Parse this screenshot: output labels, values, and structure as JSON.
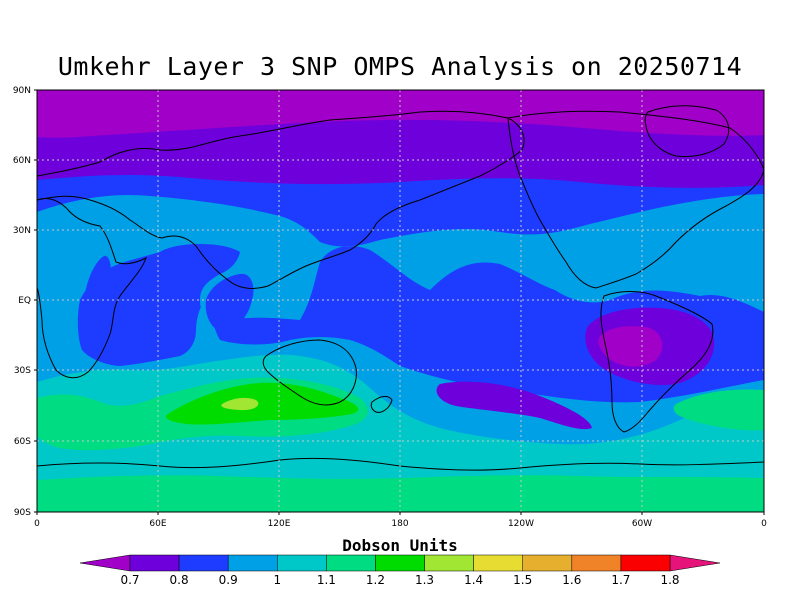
{
  "title": "Umkehr Layer 3 SNP OMPS Analysis on 20250714",
  "colorbar": {
    "label": "Dobson Units",
    "ticks": [
      "0.7",
      "0.8",
      "0.9",
      "1",
      "1.1",
      "1.2",
      "1.3",
      "1.4",
      "1.5",
      "1.6",
      "1.7",
      "1.8"
    ],
    "colors": [
      "#a000c8",
      "#6e00dc",
      "#1e3cff",
      "#00a0e6",
      "#00c8c8",
      "#00dc82",
      "#00dc00",
      "#a0e632",
      "#e6dc32",
      "#e6af2d",
      "#f08228",
      "#fa0000",
      "#e6147a"
    ]
  },
  "map": {
    "lat_labels": [
      "90N",
      "60N",
      "30N",
      "EQ",
      "30S",
      "60S",
      "90S"
    ],
    "lon_labels": [
      "0",
      "60E",
      "120E",
      "180",
      "120W",
      "60W",
      "0"
    ]
  }
}
